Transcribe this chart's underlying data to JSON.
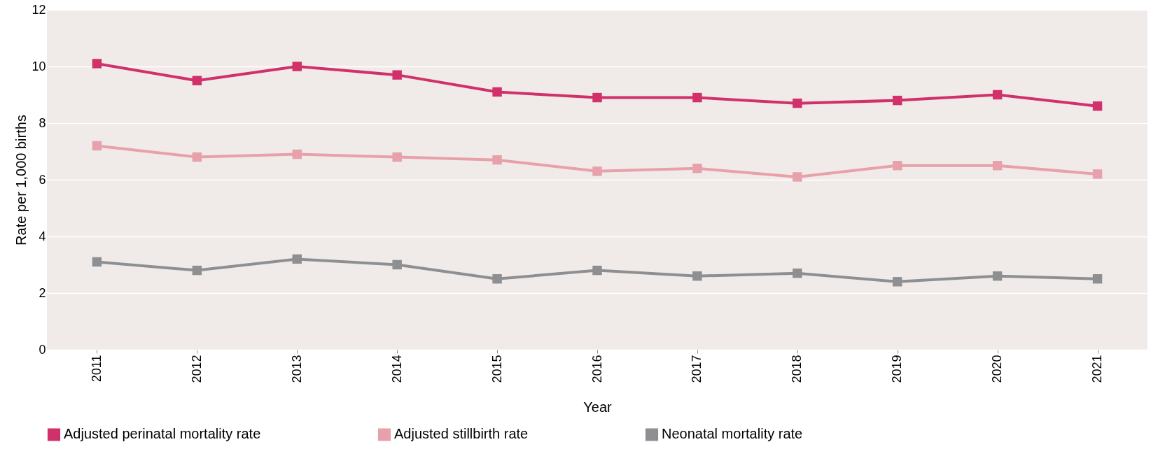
{
  "chart_data": {
    "type": "line",
    "xlabel": "Year",
    "ylabel": "Rate per 1,000 births",
    "categories": [
      "2011",
      "2012",
      "2013",
      "2014",
      "2015",
      "2016",
      "2017",
      "2018",
      "2019",
      "2020",
      "2021"
    ],
    "series": [
      {
        "name": "Adjusted perinatal mortality rate",
        "color": "#d1306a",
        "values": [
          10.1,
          9.5,
          10.0,
          9.7,
          9.1,
          8.9,
          8.9,
          8.7,
          8.8,
          9.0,
          8.6
        ]
      },
      {
        "name": "Adjusted stillbirth rate",
        "color": "#e8a0ab",
        "values": [
          7.2,
          6.8,
          6.9,
          6.8,
          6.7,
          6.3,
          6.4,
          6.1,
          6.5,
          6.5,
          6.2
        ]
      },
      {
        "name": "Neonatal mortality rate",
        "color": "#8e8f92",
        "values": [
          3.1,
          2.8,
          3.2,
          3.0,
          2.5,
          2.8,
          2.6,
          2.7,
          2.4,
          2.6,
          2.5
        ]
      }
    ],
    "ylim": [
      0,
      12
    ],
    "yticks": [
      0,
      2,
      4,
      6,
      8,
      10,
      12
    ],
    "grid": "y",
    "legend": "bottom",
    "marker": "square",
    "line_style": "solid"
  }
}
